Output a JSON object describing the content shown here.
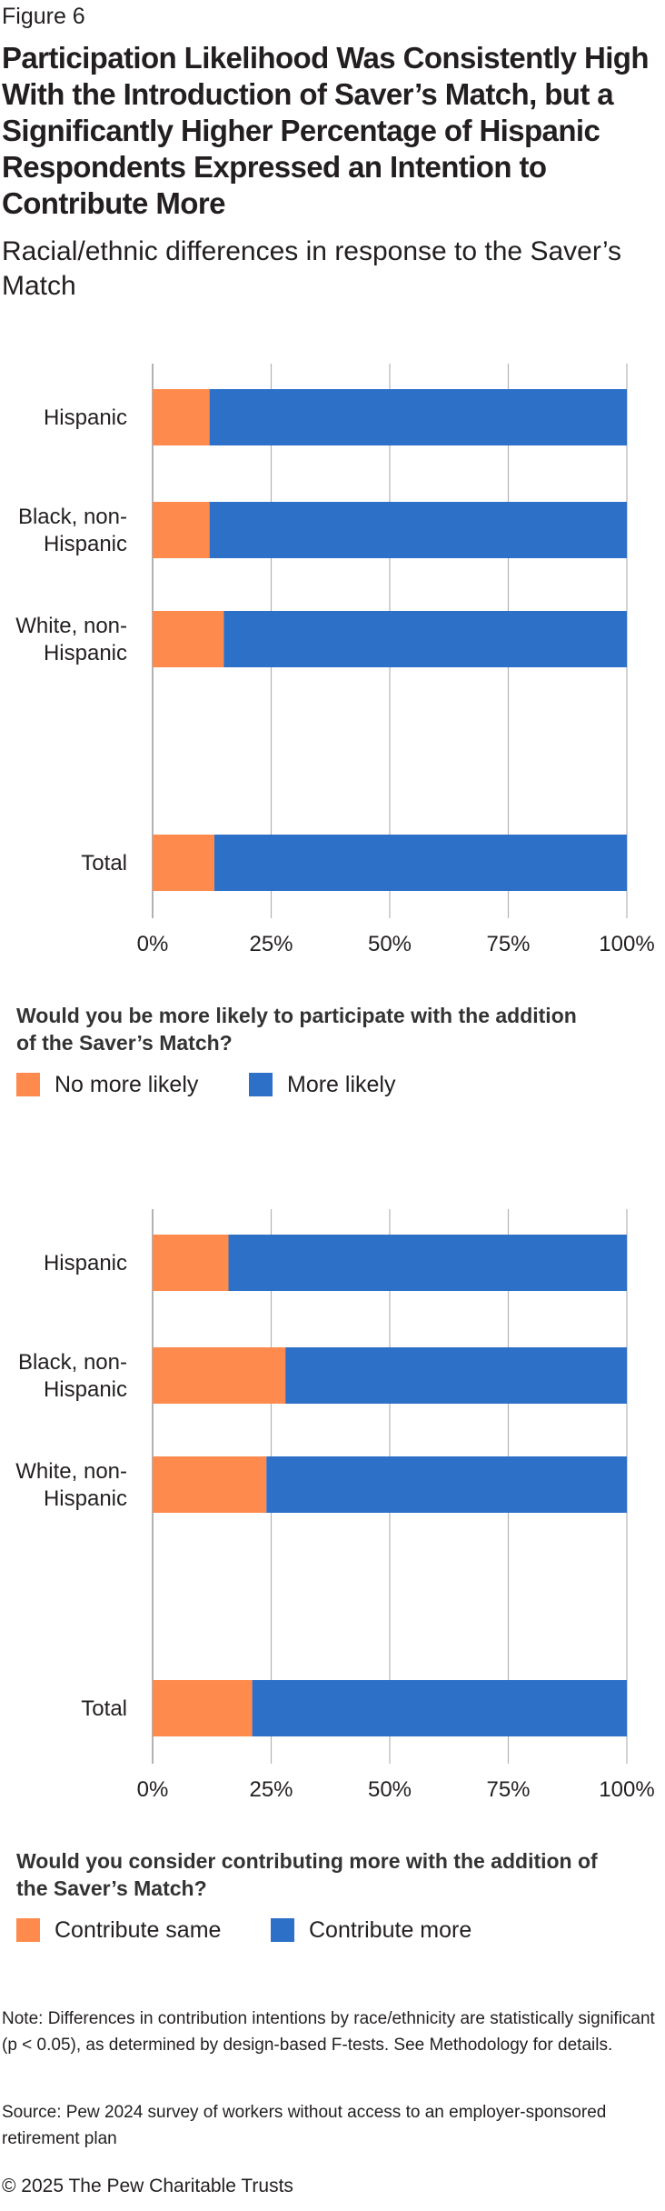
{
  "figure_label": "Figure 6",
  "title": "Participation Likelihood Was Consistently High With the Introduction of Saver’s Match, but a Significantly Higher Percentage of Hispanic Respondents Expressed an Intention to Contribute More",
  "subtitle": "Racial/ethnic differences in response to the Saver’s Match",
  "colors": {
    "orange": "#fe8a4d",
    "blue": "#2d70c8",
    "axis": "#999999",
    "grid": "#b3b3b3"
  },
  "chart_data": [
    {
      "type": "bar",
      "orientation": "horizontal",
      "stacked": true,
      "categories": [
        "Hispanic",
        "Black, non-Hispanic",
        "White, non-Hispanic",
        "Total"
      ],
      "category_lines": [
        [
          "Hispanic"
        ],
        [
          "Black, non-",
          "Hispanic"
        ],
        [
          "White, non-",
          "Hispanic"
        ],
        [
          "Total"
        ]
      ],
      "series": [
        {
          "name": "No more likely",
          "color": "#fe8a4d",
          "values": [
            12,
            12,
            15,
            13
          ]
        },
        {
          "name": "More likely",
          "color": "#2d70c8",
          "values": [
            88,
            88,
            85,
            87
          ]
        }
      ],
      "x_ticks": [
        "0%",
        "25%",
        "50%",
        "75%",
        "100%"
      ],
      "xlim": [
        0,
        100
      ],
      "grid": true,
      "legend_position": "bottom-left",
      "question": "Would you be more likely to participate with the addition of the Saver’s Match?"
    },
    {
      "type": "bar",
      "orientation": "horizontal",
      "stacked": true,
      "categories": [
        "Hispanic",
        "Black, non-Hispanic",
        "White, non-Hispanic",
        "Total"
      ],
      "category_lines": [
        [
          "Hispanic"
        ],
        [
          "Black, non-",
          "Hispanic"
        ],
        [
          "White, non-",
          "Hispanic"
        ],
        [
          "Total"
        ]
      ],
      "series": [
        {
          "name": "Contribute same",
          "color": "#fe8a4d",
          "values": [
            16,
            28,
            24,
            21
          ]
        },
        {
          "name": "Contribute more",
          "color": "#2d70c8",
          "values": [
            84,
            72,
            76,
            79
          ]
        }
      ],
      "x_ticks": [
        "0%",
        "25%",
        "50%",
        "75%",
        "100%"
      ],
      "xlim": [
        0,
        100
      ],
      "grid": true,
      "legend_position": "bottom-left",
      "question": "Would you consider contributing more with the addition of the Saver’s Match?"
    }
  ],
  "note": "Note: Differences in contribution intentions by race/ethnicity are statistically significant (p < 0.05), as determined by design-based F-tests. See Methodology for details.",
  "source": "Source: Pew 2024 survey of workers without access to an employer-sponsored retirement plan",
  "copyright": "© 2025 The Pew Charitable Trusts"
}
